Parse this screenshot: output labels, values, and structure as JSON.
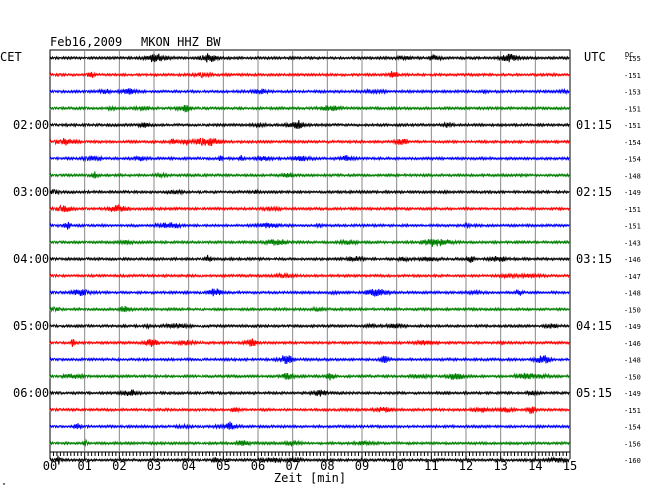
{
  "header": {
    "date": "Feb16,2009",
    "station": "MKON HHZ BW",
    "left_tz": "CET",
    "right_tz": "UTC",
    "dc_label": "DC"
  },
  "chart_data": {
    "type": "line",
    "title": "Feb16,2009   MKON HHZ BW",
    "xlabel": "Zeit [min]",
    "xlim": [
      0,
      15
    ],
    "x_ticks": [
      "00",
      "01",
      "02",
      "03",
      "04",
      "05",
      "06",
      "07",
      "08",
      "09",
      "10",
      "11",
      "12",
      "13",
      "14",
      "15"
    ],
    "trace_colors": [
      "#000000",
      "#ff0000",
      "#0000ff",
      "#008000"
    ],
    "left_time_labels": [
      {
        "row": 4,
        "label": "02:00"
      },
      {
        "row": 8,
        "label": "03:00"
      },
      {
        "row": 12,
        "label": "04:00"
      },
      {
        "row": 16,
        "label": "05:00"
      },
      {
        "row": 20,
        "label": "06:00"
      }
    ],
    "right_time_labels": [
      {
        "row": 4,
        "label": "01:15"
      },
      {
        "row": 8,
        "label": "02:15"
      },
      {
        "row": 12,
        "label": "03:15"
      },
      {
        "row": 16,
        "label": "04:15"
      },
      {
        "row": 20,
        "label": "05:15"
      }
    ],
    "dc_offsets": [
      -155,
      -151,
      -153,
      -151,
      -151,
      -154,
      -154,
      -148,
      -149,
      -151,
      -151,
      -143,
      -146,
      -147,
      -148,
      -150,
      -149,
      -146,
      -148,
      -150,
      -149,
      -151,
      -154,
      -156,
      -160
    ]
  },
  "footer": {
    "corner_mark": "\""
  }
}
